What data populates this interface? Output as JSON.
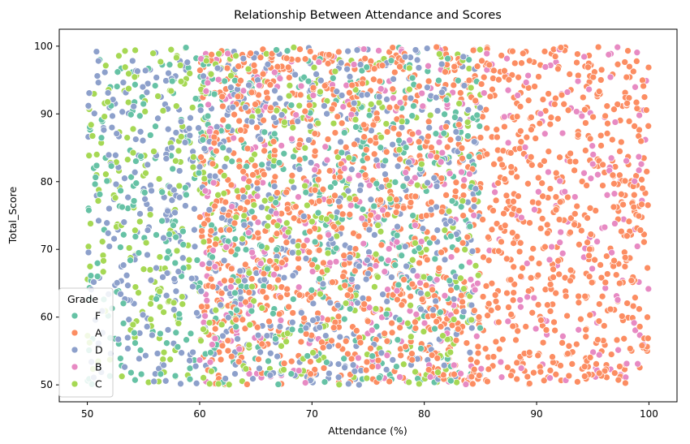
{
  "chart_data": {
    "type": "scatter",
    "title": "Relationship Between Attendance and Scores",
    "xlabel": "Attendance (%)",
    "ylabel": "Total_Score",
    "xlim": [
      47.5,
      102.5
    ],
    "ylim": [
      47.5,
      102.5
    ],
    "xticks": [
      50,
      60,
      70,
      80,
      90,
      100
    ],
    "yticks": [
      50,
      60,
      70,
      80,
      90,
      100
    ],
    "grid": false,
    "legend": {
      "title": "Grade",
      "placement": "lower-left"
    },
    "series": [
      {
        "name": "F",
        "color": "#66c2a5",
        "region": {
          "x": [
            50,
            85
          ],
          "y": [
            50,
            100
          ]
        },
        "approx_count": 520
      },
      {
        "name": "A",
        "color": "#fc8d62",
        "region": {
          "x": [
            60,
            100
          ],
          "y": [
            50,
            100
          ]
        },
        "approx_count": 1500
      },
      {
        "name": "D",
        "color": "#8da0cb",
        "region": {
          "x": [
            50,
            85
          ],
          "y": [
            50,
            100
          ]
        },
        "approx_count": 700
      },
      {
        "name": "B",
        "color": "#e78ac3",
        "region": {
          "x": [
            60,
            100
          ],
          "y": [
            50,
            100
          ]
        },
        "approx_count": 450
      },
      {
        "name": "C",
        "color": "#a6d854",
        "region": {
          "x": [
            50,
            85
          ],
          "y": [
            50,
            100
          ]
        },
        "approx_count": 520
      }
    ]
  }
}
